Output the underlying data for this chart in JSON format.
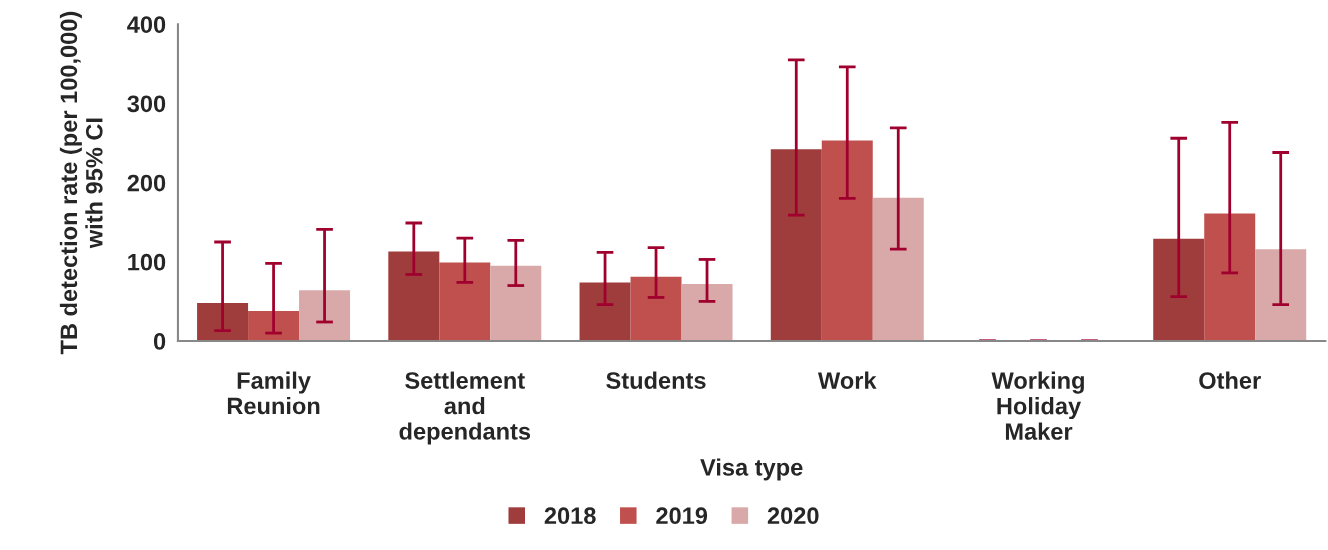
{
  "chart_data": {
    "type": "bar",
    "xlabel": "Visa type",
    "ylabel": "TB detection rate (per 100,000)\nwith 95% CI",
    "categories": [
      "Family\nReunion",
      "Settlement\nand\ndependants",
      "Students",
      "Work",
      "Working\nHoliday\nMaker",
      "Other"
    ],
    "series": [
      {
        "name": "2018",
        "color": "#9e3d3b",
        "values": [
          48,
          113,
          74,
          242,
          0,
          129
        ],
        "errors": [
          [
            13,
            125
          ],
          [
            84,
            149
          ],
          [
            46,
            112
          ],
          [
            159,
            355
          ],
          [
            0,
            0
          ],
          [
            56,
            256
          ]
        ]
      },
      {
        "name": "2019",
        "color": "#c0504d",
        "values": [
          38,
          99,
          81,
          253,
          0,
          161
        ],
        "errors": [
          [
            10,
            98
          ],
          [
            74,
            130
          ],
          [
            55,
            118
          ],
          [
            180,
            346
          ],
          [
            0,
            0
          ],
          [
            86,
            276
          ]
        ]
      },
      {
        "name": "2020",
        "color": "#d9a8a8",
        "values": [
          64,
          95,
          72,
          181,
          0,
          116
        ],
        "errors": [
          [
            24,
            141
          ],
          [
            70,
            127
          ],
          [
            50,
            103
          ],
          [
            116,
            269
          ],
          [
            0,
            0
          ],
          [
            46,
            238
          ]
        ]
      }
    ],
    "ylim": [
      0,
      400
    ],
    "yticks": [
      0,
      100,
      200,
      300,
      400
    ],
    "legend": "bottom"
  }
}
